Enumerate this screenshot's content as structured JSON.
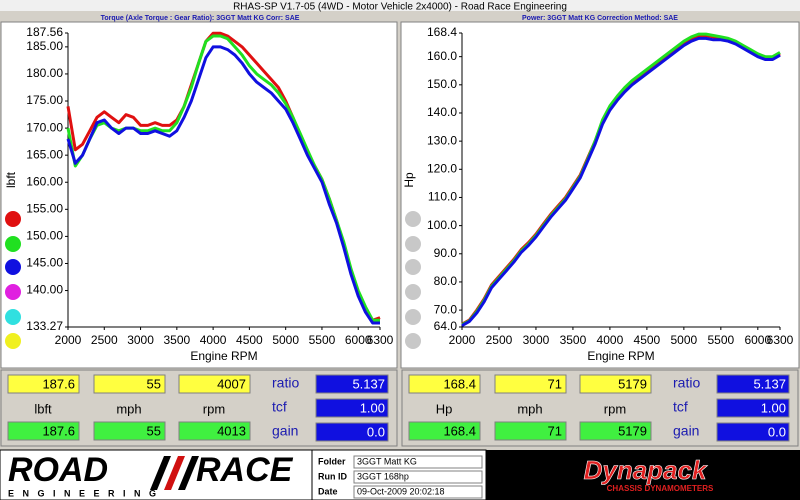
{
  "window_title": "RHAS-SP V1.7-05  (4WD - Motor Vehicle 2x4000) - Road Race Engineering",
  "chart_data": [
    {
      "type": "line",
      "title": "Torque (Axle Torque : Gear Ratio): 3GGT Matt KG    Corr: SAE",
      "ylabel": "lbft",
      "xlabel": "Engine RPM",
      "x": [
        2000,
        2100,
        2200,
        2300,
        2400,
        2500,
        2600,
        2700,
        2800,
        2900,
        3000,
        3100,
        3200,
        3300,
        3400,
        3500,
        3600,
        3700,
        3800,
        3900,
        4000,
        4100,
        4200,
        4300,
        4400,
        4500,
        4600,
        4700,
        4800,
        4900,
        5000,
        5100,
        5200,
        5300,
        5400,
        5500,
        5600,
        5700,
        5800,
        5900,
        6000,
        6100,
        6200,
        6300
      ],
      "xlim": [
        2000,
        6300
      ],
      "xticks": [
        2000,
        2500,
        3000,
        3500,
        4000,
        4500,
        5000,
        5500,
        6000,
        6300
      ],
      "ylim": [
        133.27,
        187.56
      ],
      "yticks": [
        187.56,
        {
          "value": 185,
          "label": "185.00"
        },
        {
          "value": 180,
          "label": "180.00"
        },
        {
          "value": 175,
          "label": "175.00"
        },
        {
          "value": 170,
          "label": "170.00"
        },
        {
          "value": 165,
          "label": "165.00"
        },
        {
          "value": 160,
          "label": "160.00"
        },
        {
          "value": 155,
          "label": "155.00"
        },
        {
          "value": 150,
          "label": "150.00"
        },
        {
          "value": 145,
          "label": "145.00"
        },
        {
          "value": 140,
          "label": "140.00"
        },
        133.27
      ],
      "series": [
        {
          "color": "#e01010",
          "values": [
            174,
            166,
            167,
            169.5,
            172,
            173,
            172,
            171,
            172.5,
            172,
            170.5,
            170.5,
            171,
            170.5,
            170.5,
            171.5,
            174,
            178,
            182,
            186,
            187.5,
            187.5,
            187,
            186,
            185,
            183.5,
            182,
            180.5,
            179,
            177.5,
            175,
            172,
            168.5,
            165.5,
            163,
            160.5,
            157,
            153,
            148.5,
            143.5,
            139.5,
            136.5,
            134.5,
            135
          ]
        },
        {
          "color": "#20e020",
          "values": [
            170,
            163,
            165,
            168,
            170.5,
            171,
            170,
            169.5,
            170,
            170,
            169.5,
            169.5,
            170,
            169.5,
            169.5,
            171,
            174,
            177.5,
            182,
            186,
            187,
            187,
            186.5,
            185,
            183.5,
            181.5,
            180,
            179,
            178,
            176.5,
            174.5,
            172,
            169,
            166,
            163,
            160.5,
            157,
            153,
            149,
            144,
            140,
            137,
            134.5,
            134.5
          ]
        },
        {
          "color": "#1010e0",
          "values": [
            168,
            163.5,
            165,
            168,
            171,
            171.5,
            170,
            169,
            170,
            170,
            169,
            169,
            169.5,
            169,
            168.5,
            169.5,
            172,
            175,
            179,
            183,
            185,
            185,
            184.5,
            183.5,
            182,
            180,
            178.5,
            177.5,
            176.5,
            175,
            173.5,
            171,
            168,
            165,
            162.5,
            160,
            156,
            152.5,
            148,
            143,
            139,
            136,
            134,
            134
          ]
        }
      ]
    },
    {
      "type": "line",
      "title": "Power: 3GGT Matt KG    Correction Method: SAE",
      "ylabel": "Hp",
      "xlabel": "Engine RPM",
      "x": [
        2000,
        2100,
        2200,
        2300,
        2400,
        2500,
        2600,
        2700,
        2800,
        2900,
        3000,
        3100,
        3200,
        3300,
        3400,
        3500,
        3600,
        3700,
        3800,
        3900,
        4000,
        4100,
        4200,
        4300,
        4400,
        4500,
        4600,
        4700,
        4800,
        4900,
        5000,
        5100,
        5200,
        5300,
        5400,
        5500,
        5600,
        5700,
        5800,
        5900,
        6000,
        6100,
        6200,
        6300
      ],
      "xlim": [
        2000,
        6300
      ],
      "xticks": [
        2000,
        2500,
        3000,
        3500,
        4000,
        4500,
        5000,
        5500,
        6000,
        6300
      ],
      "ylim": [
        64,
        168.4
      ],
      "yticks": [
        168.4,
        {
          "value": 160,
          "label": "160.0"
        },
        {
          "value": 150,
          "label": "150.0"
        },
        {
          "value": 140,
          "label": "140.0"
        },
        {
          "value": 130,
          "label": "130.0"
        },
        {
          "value": 120,
          "label": "120.0"
        },
        {
          "value": 110,
          "label": "110.0"
        },
        {
          "value": 100,
          "label": "100.0"
        },
        {
          "value": 90,
          "label": "90.0"
        },
        {
          "value": 80,
          "label": "80.0"
        },
        {
          "value": 70,
          "label": "70.0"
        },
        {
          "value": 64,
          "label": "64.0"
        }
      ],
      "series": [
        {
          "color": "#e01010",
          "values": [
            65,
            66.5,
            70,
            74,
            79,
            82,
            85,
            88,
            91.5,
            94,
            97,
            100.5,
            104,
            107,
            110,
            114,
            118,
            124,
            130,
            137,
            142,
            145.5,
            148.5,
            151,
            153,
            155,
            157,
            159,
            161,
            163,
            165,
            166.5,
            167.5,
            167.5,
            167,
            166.5,
            166,
            165,
            163.5,
            162,
            160.5,
            159.5,
            159.5,
            161
          ]
        },
        {
          "color": "#20e020",
          "values": [
            64.8,
            66.2,
            69.5,
            73.5,
            78.5,
            81.5,
            84.5,
            87.5,
            91,
            93.5,
            96.5,
            100,
            103.5,
            106.5,
            109.5,
            113.5,
            117.5,
            123.5,
            130,
            137.5,
            142.5,
            146,
            149,
            151.5,
            153.5,
            155.5,
            157.5,
            159.5,
            161.5,
            163.5,
            165.5,
            167,
            168,
            168,
            167.5,
            167,
            166.5,
            165.5,
            164,
            162.5,
            161,
            160,
            160,
            161.5
          ]
        },
        {
          "color": "#1010e0",
          "values": [
            64.5,
            66,
            69,
            73,
            78,
            81,
            84,
            87,
            90.5,
            93,
            96,
            99.5,
            103,
            106,
            109,
            113,
            117,
            123,
            129,
            136,
            141,
            144.5,
            147.5,
            150,
            152,
            154,
            156,
            158,
            160,
            162,
            164,
            165.5,
            166.5,
            166.5,
            166,
            166,
            165.5,
            164.5,
            163,
            161.5,
            160,
            159,
            159,
            160.5
          ]
        }
      ]
    }
  ],
  "readouts": [
    {
      "top": [
        "187.6",
        "55",
        "4007"
      ],
      "units": [
        "lbft",
        "mph",
        "rpm"
      ],
      "bottom": [
        "187.6",
        "55",
        "4013"
      ],
      "setting_labels": [
        "ratio",
        "tcf",
        "gain"
      ],
      "settings": [
        "5.137",
        "1.00",
        "0.0"
      ]
    },
    {
      "top": [
        "168.4",
        "71",
        "5179"
      ],
      "units": [
        "Hp",
        "mph",
        "rpm"
      ],
      "bottom": [
        "168.4",
        "71",
        "5179"
      ],
      "setting_labels": [
        "ratio",
        "tcf",
        "gain"
      ],
      "settings": [
        "5.137",
        "1.00",
        "0.0"
      ]
    }
  ],
  "footer": {
    "logo": [
      "ROAD",
      "RACE"
    ],
    "tagline": "E N G I N E E R I N G",
    "fields": [
      {
        "label": "Folder",
        "value": "3GGT Matt KG"
      },
      {
        "label": "Run ID",
        "value": "3GGT 168hp"
      },
      {
        "label": "Date",
        "value": "09-Oct-2009  20:02:18"
      }
    ],
    "brand": "Dynapack",
    "brand_tagline": "CHASSIS DYNAMOMETERS"
  }
}
